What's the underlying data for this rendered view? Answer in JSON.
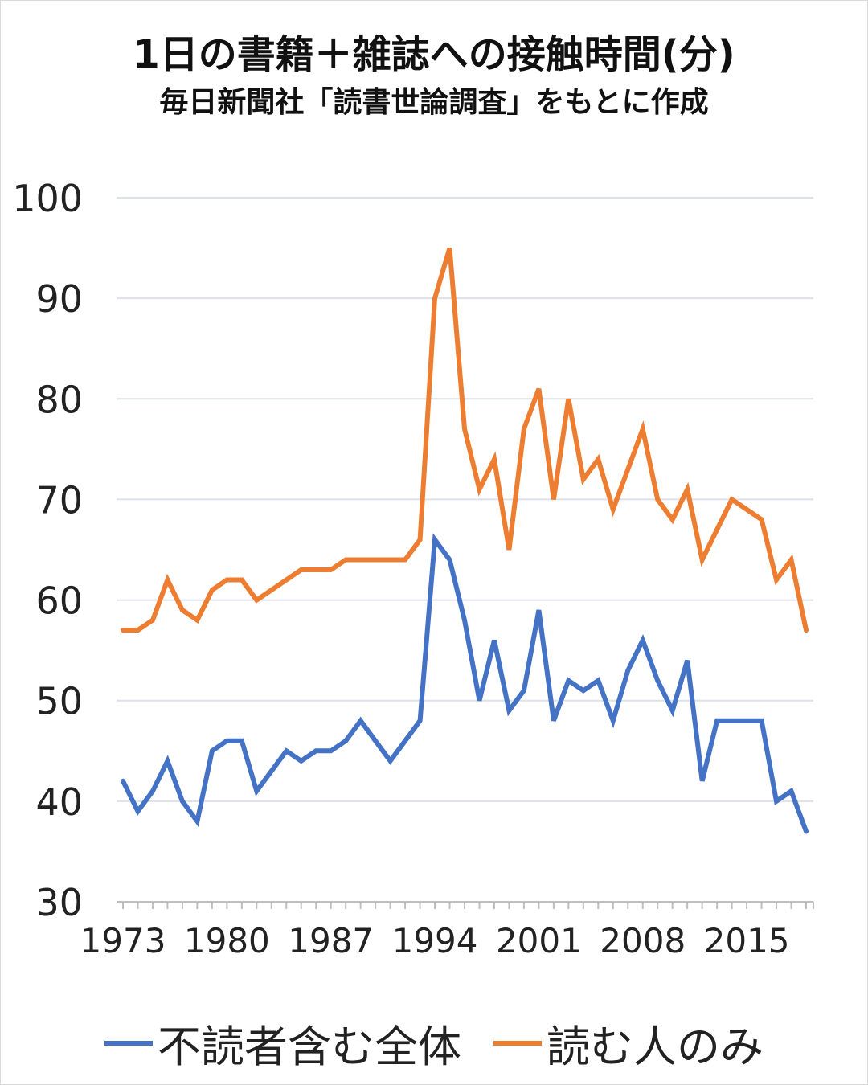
{
  "chart_data": {
    "type": "line",
    "title": "1日の書籍＋雑誌への接触時間(分)",
    "subtitle": "毎日新聞社「読書世論調査」をもとに作成",
    "xlabel": "",
    "ylabel": "",
    "ylim": [
      30,
      100
    ],
    "yticks": [
      "30",
      "40",
      "50",
      "60",
      "70",
      "80",
      "90",
      "100"
    ],
    "xtick_labels": [
      "1973",
      "1980",
      "1987",
      "1994",
      "2001",
      "2008",
      "2015"
    ],
    "grid": true,
    "legend_placement": "bottom",
    "x": [
      1973,
      1974,
      1975,
      1976,
      1977,
      1978,
      1979,
      1980,
      1981,
      1982,
      1983,
      1984,
      1985,
      1986,
      1987,
      1988,
      1989,
      1990,
      1991,
      1992,
      1993,
      1994,
      1995,
      1996,
      1997,
      1998,
      1999,
      2000,
      2001,
      2002,
      2003,
      2004,
      2005,
      2006,
      2007,
      2008,
      2009,
      2010,
      2011,
      2012,
      2013,
      2014,
      2015,
      2016,
      2017,
      2018,
      2019
    ],
    "series": [
      {
        "name": "不読者含む全体",
        "color": "#4472c4",
        "values": [
          42,
          39,
          41,
          44,
          40,
          38,
          45,
          46,
          46,
          41,
          43,
          45,
          44,
          45,
          45,
          46,
          48,
          46,
          44,
          46,
          48,
          66,
          64,
          58,
          50,
          56,
          49,
          51,
          59,
          48,
          52,
          51,
          52,
          48,
          53,
          56,
          52,
          49,
          54,
          42,
          48,
          48,
          48,
          48,
          40,
          41,
          37
        ]
      },
      {
        "name": "読む人のみ",
        "color": "#ed7d31",
        "values": [
          57,
          57,
          58,
          62,
          59,
          58,
          61,
          62,
          62,
          60,
          61,
          62,
          63,
          63,
          63,
          64,
          64,
          64,
          64,
          64,
          66,
          90,
          95,
          77,
          71,
          74,
          65,
          77,
          81,
          70,
          80,
          72,
          74,
          69,
          73,
          77,
          70,
          68,
          71,
          64,
          67,
          70,
          69,
          68,
          62,
          64,
          57
        ]
      }
    ]
  }
}
